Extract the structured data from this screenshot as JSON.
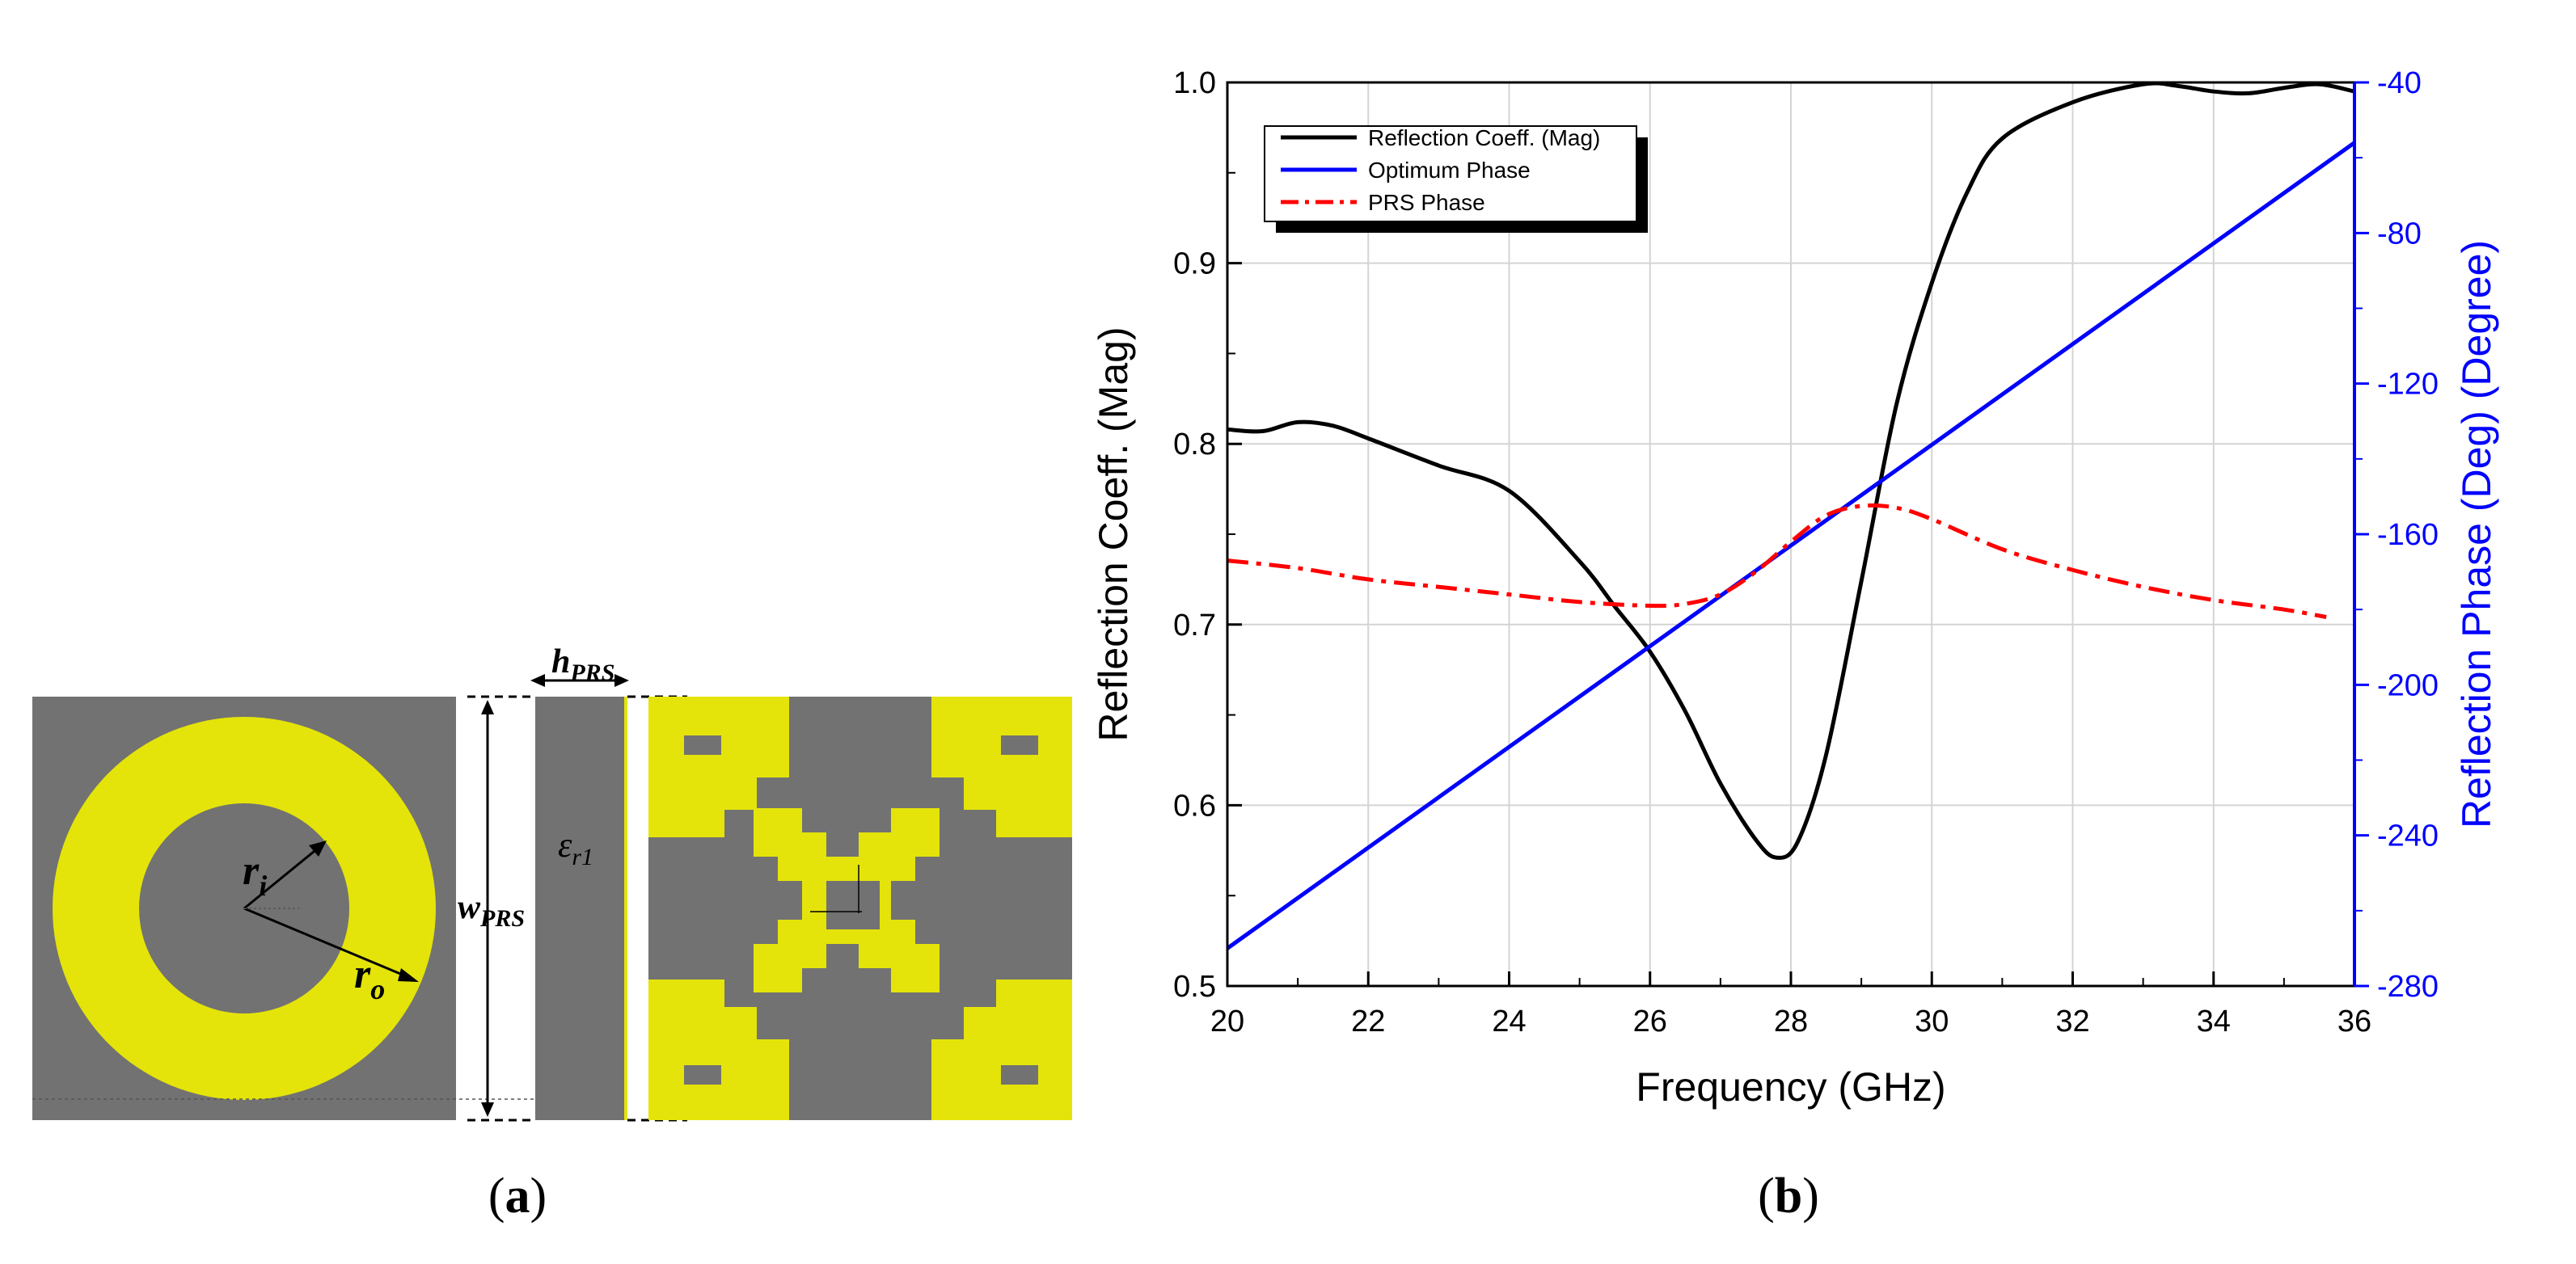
{
  "panel_a": {
    "caption_open": "(",
    "caption_letter": "a",
    "caption_close": ")",
    "labels": {
      "r_i_main": "r",
      "r_i_sub": "i",
      "r_o_main": "r",
      "r_o_sub": "o",
      "w_main": "w",
      "w_sub": "PRS",
      "h_main": "h",
      "h_sub": "PRS",
      "eps_main": "ε",
      "eps_sub": "r1"
    },
    "colors": {
      "metal": "#e4e40a",
      "substrate": "#727272"
    }
  },
  "panel_b": {
    "caption_open": "(",
    "caption_letter": "b",
    "caption_close": ")"
  },
  "chart_data": {
    "type": "line",
    "xlabel": "Frequency (GHz)",
    "ylabel_left": "Reflection Coeff. (Mag)",
    "ylabel_right": "Reflection Phase (Deg) (Degree)",
    "xlim": [
      20,
      36
    ],
    "ylim_left": [
      0.5,
      1.0
    ],
    "ylim_right": [
      -280,
      -40
    ],
    "x_ticks": [
      "20",
      "22",
      "24",
      "26",
      "28",
      "30",
      "32",
      "34",
      "36"
    ],
    "y_left_ticks": [
      "0.5",
      "0.6",
      "0.7",
      "0.8",
      "0.9",
      "1.0"
    ],
    "y_right_ticks": [
      "-280",
      "-240",
      "-200",
      "-160",
      "-120",
      "-80",
      "-40"
    ],
    "grid": true,
    "legend_position": "top-left",
    "series": [
      {
        "name": "Reflection Coeff. (Mag)",
        "axis": "left",
        "color": "#000000",
        "style": "solid",
        "x": [
          20,
          20.5,
          21,
          21.5,
          22,
          23,
          24,
          25,
          25.5,
          26,
          26.5,
          27,
          27.5,
          27.8,
          28.1,
          28.5,
          29,
          29.5,
          30,
          30.5,
          31,
          32,
          33,
          33.5,
          34,
          34.5,
          35,
          35.5,
          36
        ],
        "values": [
          0.808,
          0.807,
          0.812,
          0.81,
          0.803,
          0.788,
          0.774,
          0.735,
          0.71,
          0.685,
          0.652,
          0.612,
          0.581,
          0.571,
          0.58,
          0.628,
          0.724,
          0.822,
          0.889,
          0.939,
          0.969,
          0.989,
          0.999,
          0.998,
          0.995,
          0.994,
          0.997,
          0.999,
          0.995
        ]
      },
      {
        "name": "Optimum Phase",
        "axis": "right",
        "color": "#0000ff",
        "style": "solid",
        "x": [
          20,
          36
        ],
        "values": [
          -270,
          -56
        ]
      },
      {
        "name": "PRS Phase",
        "axis": "right",
        "color": "#ff0000",
        "style": "dashdot",
        "x": [
          20,
          21,
          22,
          23,
          24,
          25,
          26,
          26.5,
          27,
          27.5,
          28,
          28.5,
          29,
          29.5,
          30,
          31,
          32,
          33,
          34,
          35,
          35.6
        ],
        "values": [
          -167,
          -169,
          -172,
          -174,
          -176,
          -178,
          -179,
          -178.5,
          -176,
          -170,
          -162,
          -155,
          -152.5,
          -153,
          -156,
          -164,
          -169.5,
          -174,
          -177.5,
          -180,
          -182
        ]
      }
    ]
  }
}
